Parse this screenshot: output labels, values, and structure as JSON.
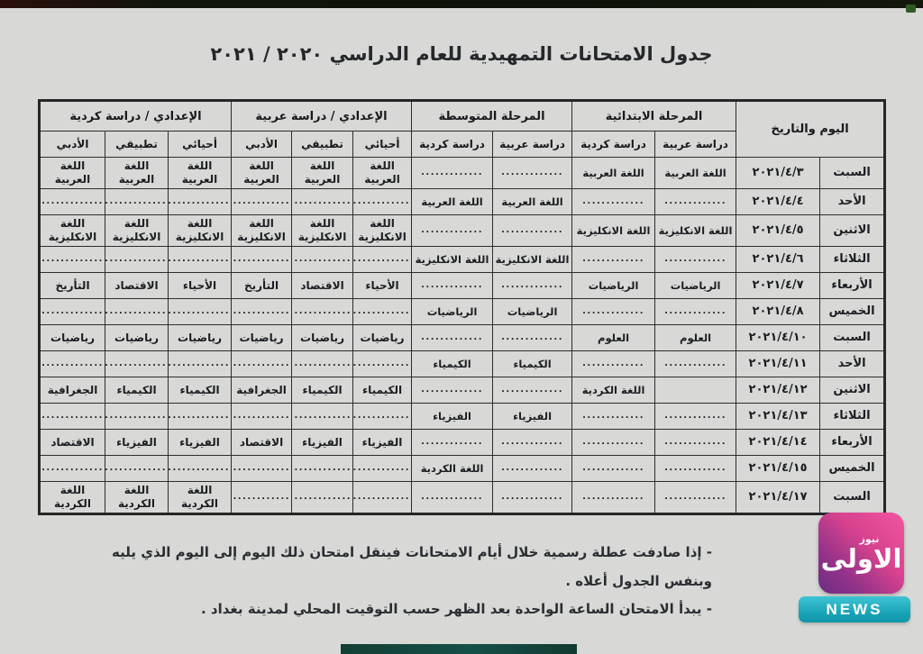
{
  "page": {
    "title": "جدول الامتحانات التمهيدية للعام الدراسي ٢٠٢٠ / ٢٠٢١"
  },
  "table": {
    "header": {
      "day_date": "اليوم والتاريخ",
      "groups": [
        {
          "label": "المرحلة الابتدائية",
          "cols": [
            "دراسة عربية",
            "دراسة كردية"
          ]
        },
        {
          "label": "المرحلة المتوسطة",
          "cols": [
            "دراسة عربية",
            "دراسة كردية"
          ]
        },
        {
          "label": "الإعدادي / دراسة عربية",
          "cols": [
            "أحيائي",
            "تطبيقي",
            "الأدبي"
          ]
        },
        {
          "label": "الإعدادي / دراسة كردية",
          "cols": [
            "أحيائي",
            "تطبيقي",
            "الأدبي"
          ]
        }
      ]
    },
    "rows": [
      [
        "السبت",
        "٢٠٢١/٤/٣",
        "اللغة العربية",
        "اللغة العربية",
        ".............",
        ".............",
        "اللغة العربية",
        "اللغة العربية",
        "اللغة العربية",
        "اللغة العربية",
        "اللغة العربية",
        "اللغة العربية"
      ],
      [
        "الأحد",
        "٢٠٢١/٤/٤",
        ".............",
        ".............",
        "اللغة العربية",
        "اللغة العربية",
        ".............",
        ".............",
        ".............",
        ".............",
        ".............",
        "............."
      ],
      [
        "الاثنين",
        "٢٠٢١/٤/٥",
        "اللغة الانكليزية",
        "اللغة الانكليزية",
        ".............",
        ".............",
        "اللغة الانكليزية",
        "اللغة الانكليزية",
        "اللغة الانكليزية",
        "اللغة الانكليزية",
        "اللغة الانكليزية",
        "اللغة الانكليزية"
      ],
      [
        "الثلاثاء",
        "٢٠٢١/٤/٦",
        ".............",
        ".............",
        "اللغة الانكليزية",
        "اللغة الانكليزية",
        ".............",
        ".............",
        ".............",
        ".............",
        ".............",
        "............."
      ],
      [
        "الأربعاء",
        "٢٠٢١/٤/٧",
        "الرياضيات",
        "الرياضيات",
        ".............",
        ".............",
        "الأحياء",
        "الاقتصاد",
        "التأريخ",
        "الأحياء",
        "الاقتصاد",
        "التأريخ"
      ],
      [
        "الخميس",
        "٢٠٢١/٤/٨",
        ".............",
        ".............",
        "الرياضيات",
        "الرياضيات",
        ".............",
        ".............",
        ".............",
        ".............",
        ".............",
        "............."
      ],
      [
        "السبت",
        "٢٠٢١/٤/١٠",
        "العلوم",
        "العلوم",
        ".............",
        ".............",
        "رياضيات",
        "رياضيات",
        "رياضيات",
        "رياضيات",
        "رياضيات",
        "رياضيات"
      ],
      [
        "الأحد",
        "٢٠٢١/٤/١١",
        ".............",
        ".............",
        "الكيمياء",
        "الكيمياء",
        ".............",
        ".............",
        ".............",
        ".............",
        ".............",
        "............."
      ],
      [
        "الاثنين",
        "٢٠٢١/٤/١٢",
        "",
        "اللغة الكردية",
        ".............",
        ".............",
        "الكيمياء",
        "الكيمياء",
        "الجغرافية",
        "الكيمياء",
        "الكيمياء",
        "الجغرافية"
      ],
      [
        "الثلاثاء",
        "٢٠٢١/٤/١٣",
        ".............",
        ".............",
        "الفيزياء",
        "الفيزياء",
        ".............",
        ".............",
        ".............",
        ".............",
        ".............",
        "............."
      ],
      [
        "الأربعاء",
        "٢٠٢١/٤/١٤",
        ".............",
        ".............",
        ".............",
        ".............",
        "الفيزياء",
        "الفيزياء",
        "الاقتصاد",
        "الفيزياء",
        "الفيزياء",
        "الاقتصاد"
      ],
      [
        "الخميس",
        "٢٠٢١/٤/١٥",
        ".............",
        ".............",
        ".............",
        "اللغة الكردية",
        ".............",
        ".............",
        ".............",
        ".............",
        ".............",
        "............."
      ],
      [
        "السبت",
        "٢٠٢١/٤/١٧",
        ".............",
        ".............",
        ".............",
        ".............",
        ".............",
        ".............",
        ".............",
        "اللغة الكردية",
        "اللغة الكردية",
        "اللغة الكردية"
      ]
    ]
  },
  "notes": [
    "- إذا صادفت عطلة رسمية خلال أيام الامتحانات فينقل امتحان ذلك اليوم إلى اليوم الذي يليه وبنفس الجدول أعلاه .",
    "- يبدأ الامتحان الساعة الواحدة بعد الظهر حسب التوقيت المحلي لمدينة بغداد ."
  ],
  "logo": {
    "brand": "الاولى",
    "sub": "نيوز",
    "news": "NEWS"
  },
  "colors": {
    "page_bg": "#d8d9d6",
    "logo_pink": "#f2559f",
    "logo_purple": "#6b2d85",
    "news_teal": "#17a0b4",
    "bottom_strip_teal": "#155046",
    "ink": "#1b1e22"
  }
}
